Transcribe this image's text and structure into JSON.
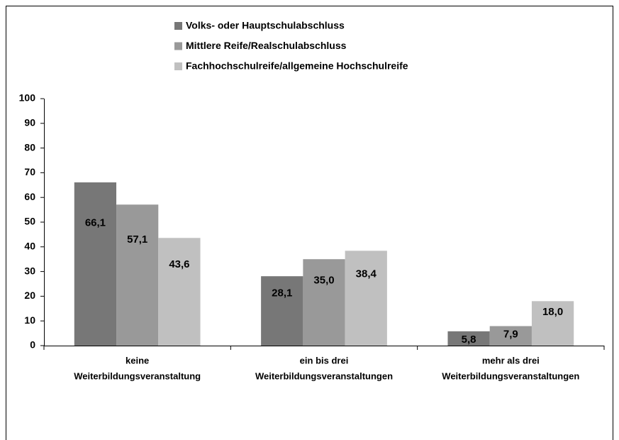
{
  "chart_data": {
    "type": "bar",
    "categories": [
      [
        "keine",
        "Weiterbildungsveranstaltung"
      ],
      [
        "ein bis drei",
        "Weiterbildungsveranstaltungen"
      ],
      [
        "mehr als drei",
        "Weiterbildungsveranstaltungen"
      ]
    ],
    "series": [
      {
        "name": "Volks- oder Hauptschulabschluss",
        "color": "#777777",
        "values": [
          66.1,
          28.1,
          5.8
        ],
        "value_labels": [
          "66,1",
          "28,1",
          "5,8"
        ]
      },
      {
        "name": "Mittlere Reife/Realschulabschluss",
        "color": "#999999",
        "values": [
          57.1,
          35.0,
          7.9
        ],
        "value_labels": [
          "57,1",
          "35,0",
          "7,9"
        ]
      },
      {
        "name": "Fachhochschulreife/allgemeine Hochschulreife",
        "color": "#c0c0c0",
        "values": [
          43.6,
          38.4,
          18.0
        ],
        "value_labels": [
          "43,6",
          "38,4",
          "18,0"
        ]
      }
    ],
    "ylim": [
      0,
      100
    ],
    "yticks": [
      0,
      10,
      20,
      30,
      40,
      50,
      60,
      70,
      80,
      90,
      100
    ],
    "grid": false,
    "legend": "top"
  }
}
